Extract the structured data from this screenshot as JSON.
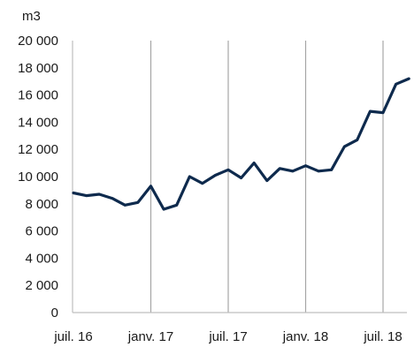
{
  "chart_data": {
    "type": "line",
    "title": "",
    "unit_label": "m3",
    "xlabel": "",
    "ylabel": "",
    "ylim": [
      0,
      20000
    ],
    "y_ticks": [
      0,
      2000,
      4000,
      6000,
      8000,
      10000,
      12000,
      14000,
      16000,
      18000,
      20000
    ],
    "y_tick_labels": [
      "0",
      "2 000",
      "4 000",
      "6 000",
      "8 000",
      "10 000",
      "12 000",
      "14 000",
      "16 000",
      "18 000",
      "20 000"
    ],
    "x_ticks": [
      "2016-07",
      "2017-01",
      "2017-07",
      "2018-01",
      "2018-07"
    ],
    "x_tick_labels": [
      "juil. 16",
      "janv. 17",
      "juil. 17",
      "janv. 18",
      "juil. 18"
    ],
    "x_range": [
      "2016-07",
      "2018-09"
    ],
    "vertical_gridlines_at": [
      "2017-01",
      "2017-07",
      "2018-01",
      "2018-07"
    ],
    "horizontal_grid": false,
    "legend": "none",
    "line_color": "#0e2a4d",
    "grid_color": "#a6a6a6",
    "axis_color": "#bfbfbf",
    "series": [
      {
        "x": [
          "2016-07",
          "2016-08",
          "2016-09",
          "2016-10",
          "2016-11",
          "2016-12",
          "2017-01",
          "2017-02",
          "2017-03",
          "2017-04",
          "2017-05",
          "2017-06",
          "2017-07",
          "2017-08",
          "2017-09",
          "2017-10",
          "2017-11",
          "2017-12",
          "2018-01",
          "2018-02",
          "2018-03",
          "2018-04",
          "2018-05",
          "2018-06",
          "2018-07",
          "2018-08",
          "2018-09"
        ],
        "values": [
          8800,
          8600,
          8700,
          8400,
          7900,
          8100,
          9300,
          7600,
          7900,
          10000,
          9500,
          10100,
          10500,
          9900,
          11000,
          9700,
          10600,
          10400,
          10800,
          10400,
          10500,
          12200,
          12700,
          14800,
          14700,
          16800,
          17200
        ]
      }
    ]
  }
}
